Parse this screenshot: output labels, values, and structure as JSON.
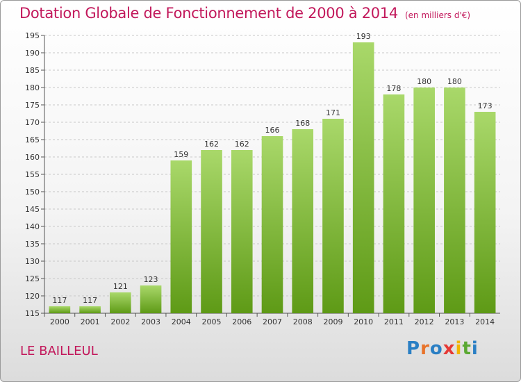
{
  "title": "Dotation Globale de Fonctionnement de 2000 à 2014",
  "subtitle": "(en milliers d'€)",
  "commune": "LE BAILLEUL",
  "logo": {
    "letters": [
      "P",
      "r",
      "o",
      "x",
      "i",
      "t",
      "i"
    ],
    "colors": [
      "#2a7fc4",
      "#e8732a",
      "#2a7fc4",
      "#e53935",
      "#f2b400",
      "#5aa832",
      "#2a7fc4"
    ]
  },
  "colors": {
    "bar_light": "#a9d86a",
    "bar_dark": "#5e9a16",
    "title": "#c2185b",
    "grid": "#c8c8c8"
  },
  "chart_data": {
    "type": "bar",
    "title": "Dotation Globale de Fonctionnement de 2000 à 2014",
    "subtitle": "(en milliers d'€)",
    "categories": [
      "2000",
      "2001",
      "2002",
      "2003",
      "2004",
      "2005",
      "2006",
      "2007",
      "2008",
      "2009",
      "2010",
      "2011",
      "2012",
      "2013",
      "2014"
    ],
    "values": [
      117,
      117,
      121,
      123,
      159,
      162,
      162,
      166,
      168,
      171,
      193,
      178,
      180,
      180,
      173
    ],
    "ylim": [
      115,
      195
    ],
    "yticks": [
      115,
      120,
      125,
      130,
      135,
      140,
      145,
      150,
      155,
      160,
      165,
      170,
      175,
      180,
      185,
      190,
      195
    ],
    "grid": true
  }
}
